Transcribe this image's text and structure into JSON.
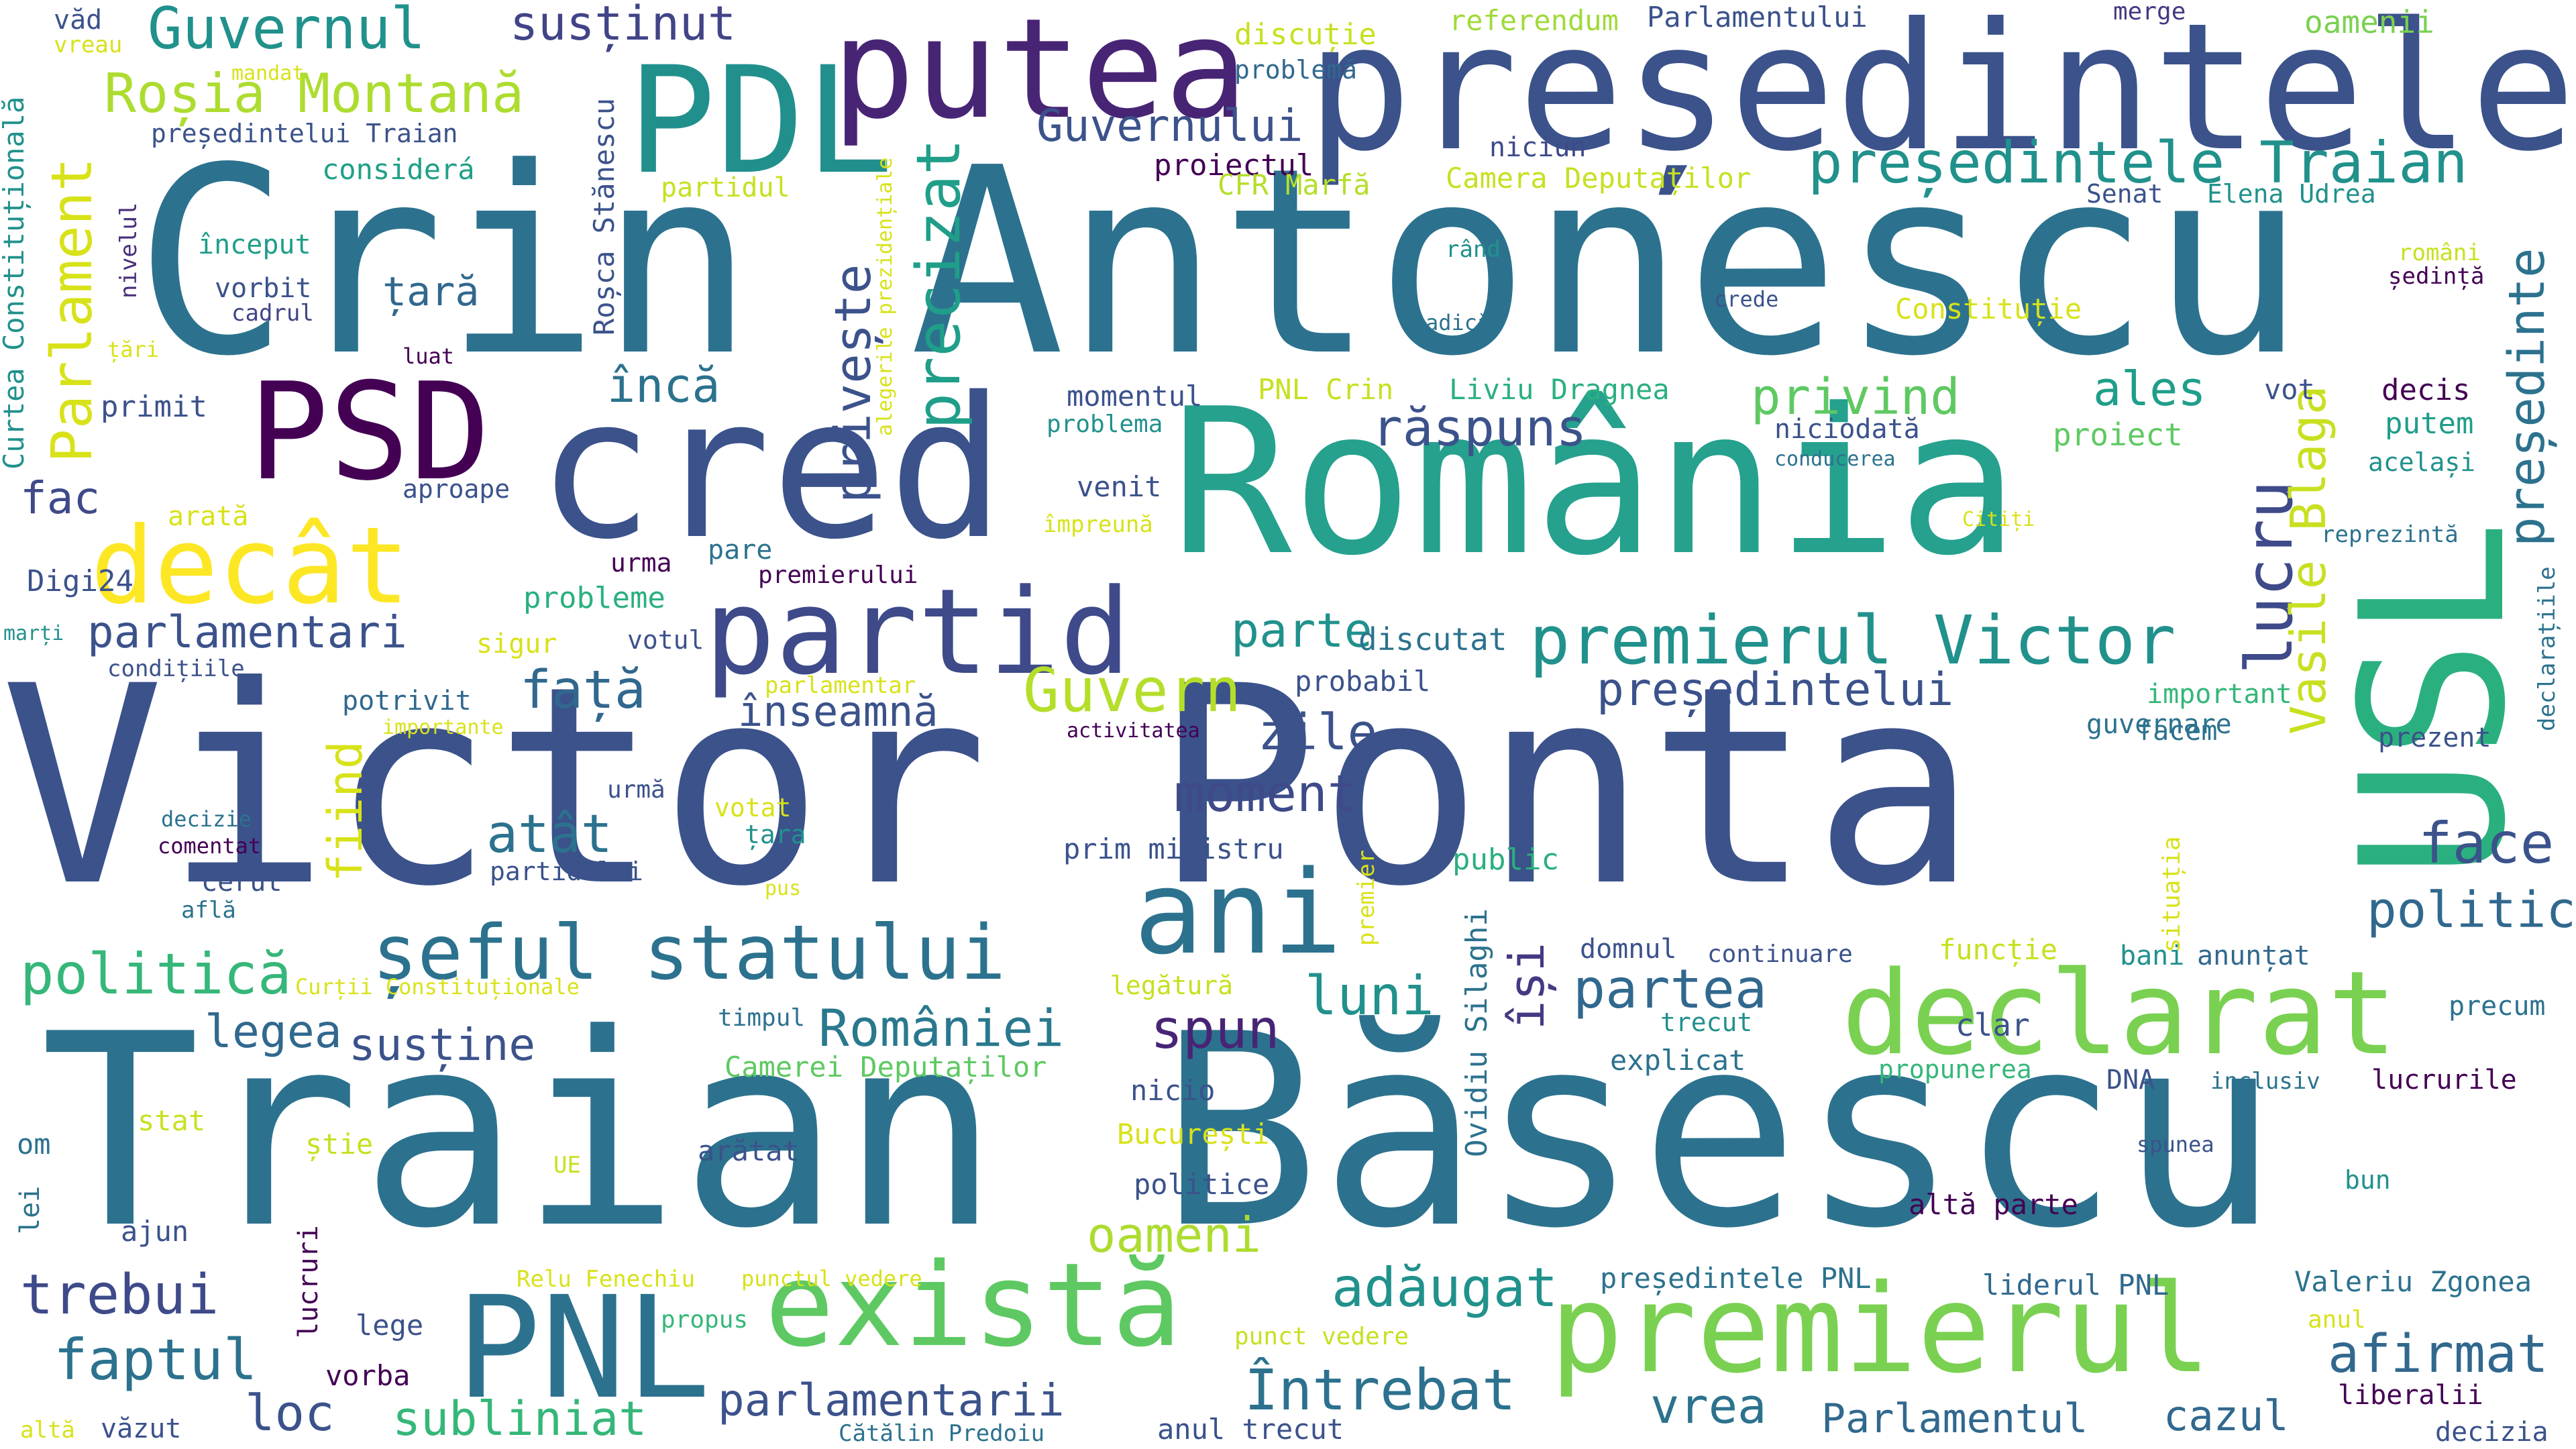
{
  "words": [
    {
      "text": "Victor Ponta",
      "color": "#3b528b"
    },
    {
      "text": "Traian Băsescu",
      "color": "#2c728e"
    },
    {
      "text": "Crin Antonescu",
      "color": "#2c728e"
    },
    {
      "text": "România",
      "color": "#25a18e"
    },
    {
      "text": "cred",
      "color": "#3b528b"
    },
    {
      "text": "președintele",
      "color": "#3b528b"
    },
    {
      "text": "USL",
      "color": "#2ab07f"
    },
    {
      "text": "putea",
      "color": "#482475"
    },
    {
      "text": "partid",
      "color": "#3e4a89"
    },
    {
      "text": "PDL",
      "color": "#21908d"
    },
    {
      "text": "PSD",
      "color": "#440154"
    },
    {
      "text": "PNL",
      "color": "#2c728e"
    },
    {
      "text": "există",
      "color": "#5ec962"
    },
    {
      "text": "premierul",
      "color": "#7ad151"
    },
    {
      "text": "declarat",
      "color": "#7ad151"
    },
    {
      "text": "ani",
      "color": "#2c728e"
    },
    {
      "text": "decât",
      "color": "#fde725"
    },
    {
      "text": "șeful statului",
      "color": "#2c728e"
    },
    {
      "text": "premierul Victor",
      "color": "#21918c"
    },
    {
      "text": "președintele Traian",
      "color": "#21918c"
    },
    {
      "text": "Guvernul",
      "color": "#21918c"
    },
    {
      "text": "Roșia Montană",
      "color": "#addc30"
    },
    {
      "text": "Parlament",
      "color": "#d8e219"
    },
    {
      "text": "Guvern",
      "color": "#b5de2b"
    },
    {
      "text": "politică",
      "color": "#35b779"
    },
    {
      "text": "Guvernului",
      "color": "#3b528b"
    },
    {
      "text": "susținut",
      "color": "#414487"
    },
    {
      "text": "precizat",
      "color": "#1f9e89"
    },
    {
      "text": "privește",
      "color": "#3b528b"
    },
    {
      "text": "lucru",
      "color": "#3e4a89"
    },
    {
      "text": "Vasile Blaga",
      "color": "#c8e020"
    },
    {
      "text": "președinte",
      "color": "#2c728e"
    },
    {
      "text": "răspuns",
      "color": "#3b528b"
    },
    {
      "text": "privind",
      "color": "#5ec962"
    },
    {
      "text": "ales",
      "color": "#1f9e89"
    },
    {
      "text": "încă",
      "color": "#2c728e"
    },
    {
      "text": "parlamentari",
      "color": "#3b528b"
    },
    {
      "text": "parte",
      "color": "#21918c"
    },
    {
      "text": "președintelui",
      "color": "#3b528b"
    },
    {
      "text": "înseamnă",
      "color": "#3b528b"
    },
    {
      "text": "față",
      "color": "#31688e"
    },
    {
      "text": "atât",
      "color": "#2c728e"
    },
    {
      "text": "zile",
      "color": "#3b528b"
    },
    {
      "text": "moment",
      "color": "#3e4a89"
    },
    {
      "text": "fiind",
      "color": "#d8e219"
    },
    {
      "text": "legea",
      "color": "#31688e"
    },
    {
      "text": "susține",
      "color": "#3b528b"
    },
    {
      "text": "României",
      "color": "#2a788e"
    },
    {
      "text": "spun",
      "color": "#482475"
    },
    {
      "text": "luni",
      "color": "#21918c"
    },
    {
      "text": "partea",
      "color": "#31688e"
    },
    {
      "text": "își",
      "color": "#443983"
    },
    {
      "text": "politic",
      "color": "#31688e"
    },
    {
      "text": "face",
      "color": "#3b528b"
    },
    {
      "text": "afirmat",
      "color": "#31688e"
    },
    {
      "text": "adăugat",
      "color": "#21918c"
    },
    {
      "text": "oameni",
      "color": "#addc30"
    },
    {
      "text": "Întrebat",
      "color": "#2c728e"
    },
    {
      "text": "vrea",
      "color": "#2c728e"
    },
    {
      "text": "Parlamentul",
      "color": "#31688e"
    },
    {
      "text": "cazul",
      "color": "#31688e"
    },
    {
      "text": "trebui",
      "color": "#3e4a89"
    },
    {
      "text": "faptul",
      "color": "#2c728e"
    },
    {
      "text": "loc",
      "color": "#3b528b"
    },
    {
      "text": "subliniat",
      "color": "#35b779"
    },
    {
      "text": "parlamentarii",
      "color": "#3b528b"
    },
    {
      "text": "fac",
      "color": "#3e4a89"
    },
    {
      "text": "Digi24",
      "color": "#3b528b"
    },
    {
      "text": "primit",
      "color": "#3b528b"
    },
    {
      "text": "țară",
      "color": "#31688e"
    },
    {
      "text": "considerá",
      "color": "#1fa088"
    },
    {
      "text": "început",
      "color": "#1f9e89"
    },
    {
      "text": "vorbit",
      "color": "#3b528b"
    },
    {
      "text": "cadrul",
      "color": "#414487"
    },
    {
      "text": "luat",
      "color": "#440154"
    },
    {
      "text": "țări",
      "color": "#d8e219"
    },
    {
      "text": "nivelul",
      "color": "#472d7b"
    },
    {
      "text": "Curtea Constituțională",
      "color": "#21918c"
    },
    {
      "text": "vreau",
      "color": "#d8e219"
    },
    {
      "text": "văd",
      "color": "#3b528b"
    },
    {
      "text": "mandat",
      "color": "#d8e219"
    },
    {
      "text": "președintelui Traian",
      "color": "#3b528b"
    },
    {
      "text": "Roșca Stănescu",
      "color": "#3b528b"
    },
    {
      "text": "partidul",
      "color": "#c8e020"
    },
    {
      "text": "alegerile prezidențiale",
      "color": "#d8e219"
    },
    {
      "text": "proiectul",
      "color": "#440154"
    },
    {
      "text": "niciun",
      "color": "#3e4a89"
    },
    {
      "text": "CFR Marfă",
      "color": "#b5de2b"
    },
    {
      "text": "Camera Deputaților",
      "color": "#c8e020"
    },
    {
      "text": "referendum",
      "color": "#a0da39"
    },
    {
      "text": "Parlamentului",
      "color": "#3b528b"
    },
    {
      "text": "merge",
      "color": "#443983"
    },
    {
      "text": "oamenii",
      "color": "#7ad151"
    },
    {
      "text": "discuție",
      "color": "#c8e020"
    },
    {
      "text": "problemă",
      "color": "#31688e"
    },
    {
      "text": "rând",
      "color": "#21918c"
    },
    {
      "text": "adică",
      "color": "#2c728e"
    },
    {
      "text": "crede",
      "color": "#3b528b"
    },
    {
      "text": "Senat",
      "color": "#3b528b"
    },
    {
      "text": "Elena Udrea",
      "color": "#21918c"
    },
    {
      "text": "români",
      "color": "#c8e020"
    },
    {
      "text": "ședință",
      "color": "#440154"
    },
    {
      "text": "Constituție",
      "color": "#d8e219"
    },
    {
      "text": "momentul",
      "color": "#3b528b"
    },
    {
      "text": "problema",
      "color": "#21918c"
    },
    {
      "text": "PNL Crin",
      "color": "#c8e020"
    },
    {
      "text": "Liviu Dragnea",
      "color": "#2ab07f"
    },
    {
      "text": "niciodată",
      "color": "#3b528b"
    },
    {
      "text": "conducerea",
      "color": "#2c728e"
    },
    {
      "text": "proiect",
      "color": "#5ec962"
    },
    {
      "text": "vot",
      "color": "#3b528b"
    },
    {
      "text": "decis",
      "color": "#440154"
    },
    {
      "text": "putem",
      "color": "#1f9e89"
    },
    {
      "text": "același",
      "color": "#21918c"
    },
    {
      "text": "Citiți",
      "color": "#d8e219"
    },
    {
      "text": "reprezintă",
      "color": "#2c728e"
    },
    {
      "text": "declarațiile",
      "color": "#2c728e"
    },
    {
      "text": "venit",
      "color": "#3b528b"
    },
    {
      "text": "împreună",
      "color": "#d8e219"
    },
    {
      "text": "aproape",
      "color": "#3b528b"
    },
    {
      "text": "arată",
      "color": "#d8e219"
    },
    {
      "text": "pare",
      "color": "#2c728e"
    },
    {
      "text": "urma",
      "color": "#440154"
    },
    {
      "text": "premierului",
      "color": "#440154"
    },
    {
      "text": "probleme",
      "color": "#2ab07f"
    },
    {
      "text": "sigur",
      "color": "#d8e219"
    },
    {
      "text": "votul",
      "color": "#3b528b"
    },
    {
      "text": "marți",
      "color": "#21918c"
    },
    {
      "text": "condițiile",
      "color": "#3b528b"
    },
    {
      "text": "parlamentar",
      "color": "#d8e219"
    },
    {
      "text": "discutat",
      "color": "#2c728e"
    },
    {
      "text": "probabil",
      "color": "#3b528b"
    },
    {
      "text": "potrivit",
      "color": "#31688e"
    },
    {
      "text": "importante",
      "color": "#d8e219"
    },
    {
      "text": "activitatea",
      "color": "#440154"
    },
    {
      "text": "important",
      "color": "#35b779"
    },
    {
      "text": "guvernare",
      "color": "#2c728e"
    },
    {
      "text": "facem",
      "color": "#2c728e"
    },
    {
      "text": "prezent",
      "color": "#3b528b"
    },
    {
      "text": "decizie",
      "color": "#2c728e"
    },
    {
      "text": "comentat",
      "color": "#440154"
    },
    {
      "text": "urmă",
      "color": "#3b528b"
    },
    {
      "text": "votat",
      "color": "#d8e219"
    },
    {
      "text": "țara",
      "color": "#21918c"
    },
    {
      "text": "partidului",
      "color": "#3b528b"
    },
    {
      "text": "cerut",
      "color": "#3b528b"
    },
    {
      "text": "află",
      "color": "#2c728e"
    },
    {
      "text": "pus",
      "color": "#d8e219"
    },
    {
      "text": "prim ministru",
      "color": "#3b528b"
    },
    {
      "text": "premier",
      "color": "#d8e219"
    },
    {
      "text": "public",
      "color": "#2ab07f"
    },
    {
      "text": "Ovidiu Silaghi",
      "color": "#2c728e"
    },
    {
      "text": "situația",
      "color": "#d8e219"
    },
    {
      "text": "domnul",
      "color": "#3b528b"
    },
    {
      "text": "continuare",
      "color": "#3b528b"
    },
    {
      "text": "funcție",
      "color": "#c8e020"
    },
    {
      "text": "bani",
      "color": "#21918c"
    },
    {
      "text": "anunțat",
      "color": "#31688e"
    },
    {
      "text": "Curții Constituționale",
      "color": "#d8e219"
    },
    {
      "text": "timpul",
      "color": "#2c728e"
    },
    {
      "text": "legătură",
      "color": "#c8e020"
    },
    {
      "text": "trecut",
      "color": "#21918c"
    },
    {
      "text": "clar",
      "color": "#3b528b"
    },
    {
      "text": "precum",
      "color": "#2c728e"
    },
    {
      "text": "explicat",
      "color": "#2c728e"
    },
    {
      "text": "propunerea",
      "color": "#35b779"
    },
    {
      "text": "DNA",
      "color": "#3b528b"
    },
    {
      "text": "inclusiv",
      "color": "#2c728e"
    },
    {
      "text": "lucrurile",
      "color": "#440154"
    },
    {
      "text": "Camerei Deputaților",
      "color": "#5ec962"
    },
    {
      "text": "nicio",
      "color": "#3b528b"
    },
    {
      "text": "stat",
      "color": "#c8e020"
    },
    {
      "text": "om",
      "color": "#2c728e"
    },
    {
      "text": "știe",
      "color": "#c8e020"
    },
    {
      "text": "UE",
      "color": "#c8e020"
    },
    {
      "text": "arătat",
      "color": "#3b528b"
    },
    {
      "text": "București",
      "color": "#d8e219"
    },
    {
      "text": "politice",
      "color": "#3b528b"
    },
    {
      "text": "spunea",
      "color": "#3b528b"
    },
    {
      "text": "bun",
      "color": "#21918c"
    },
    {
      "text": "altă parte",
      "color": "#440154"
    },
    {
      "text": "lei",
      "color": "#2c728e"
    },
    {
      "text": "ajun",
      "color": "#3b528b"
    },
    {
      "text": "lucruri",
      "color": "#440154"
    },
    {
      "text": "Relu Fenechiu",
      "color": "#d8e219"
    },
    {
      "text": "punctul vedere",
      "color": "#d8e219"
    },
    {
      "text": "președintele PNL",
      "color": "#2c728e"
    },
    {
      "text": "liderul PNL",
      "color": "#31688e"
    },
    {
      "text": "Valeriu Zgonea",
      "color": "#2c728e"
    },
    {
      "text": "lege",
      "color": "#3b528b"
    },
    {
      "text": "propus",
      "color": "#35b779"
    },
    {
      "text": "punct vedere",
      "color": "#c8e020"
    },
    {
      "text": "anul",
      "color": "#d8e219"
    },
    {
      "text": "vorba",
      "color": "#440154"
    },
    {
      "text": "liberalii",
      "color": "#440154"
    },
    {
      "text": "altă",
      "color": "#d8e219"
    },
    {
      "text": "văzut",
      "color": "#3b528b"
    },
    {
      "text": "Cătălin Predoiu",
      "color": "#2c728e"
    },
    {
      "text": "anul trecut",
      "color": "#3b528b"
    },
    {
      "text": "decizia",
      "color": "#3b528b"
    }
  ]
}
